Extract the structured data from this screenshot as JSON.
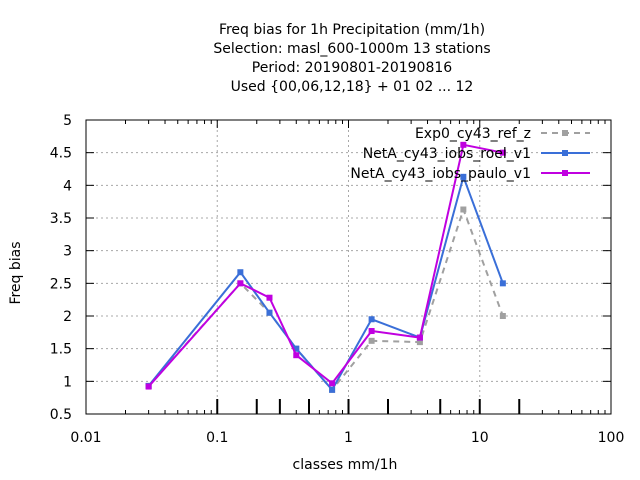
{
  "chart_data": {
    "type": "line",
    "title_lines": [
      "Freq bias  for 1h Precipitation (mm/1h)",
      "Selection: masl_600-1000m     13 stations",
      "Period: 20190801-20190816",
      "Used {00,06,12,18} + 01 02 ... 12"
    ],
    "xlabel": "classes mm/1h",
    "ylabel": "Freq bias",
    "xscale": "log",
    "xlim": [
      0.01,
      100
    ],
    "ylim": [
      0.5,
      5
    ],
    "x_tick_labels": [
      "0.01",
      "0.1",
      "1",
      "10",
      "100"
    ],
    "y_tick_labels": [
      "0.5",
      "1",
      "1.5",
      "2",
      "2.5",
      "3",
      "3.5",
      "4",
      "4.5",
      "5"
    ],
    "grid": true,
    "legend_position": "top-right",
    "class_limits": [
      0.1,
      0.2,
      0.3,
      0.5,
      1,
      2,
      5,
      10,
      20
    ],
    "x": [
      0.03,
      0.15,
      0.25,
      0.4,
      0.75,
      1.5,
      3.5,
      7.5,
      15
    ],
    "series": [
      {
        "name": "Exp0_cy43_ref_z",
        "color": "#a0a0a0",
        "style": "dashed",
        "values": [
          0.93,
          2.5,
          2.05,
          1.5,
          0.87,
          1.62,
          1.6,
          3.63,
          2.0
        ]
      },
      {
        "name": "NetA_cy43_iobs_roel_v1",
        "color": "#3a6fd8",
        "style": "solid",
        "values": [
          0.93,
          2.67,
          2.05,
          1.5,
          0.87,
          1.95,
          1.67,
          4.13,
          2.5
        ]
      },
      {
        "name": "NetA_cy43_iobs_paulo_v1",
        "color": "#c000e0",
        "style": "solid",
        "values": [
          0.92,
          2.5,
          2.28,
          1.4,
          0.97,
          1.77,
          1.67,
          4.62,
          4.5
        ]
      }
    ]
  }
}
